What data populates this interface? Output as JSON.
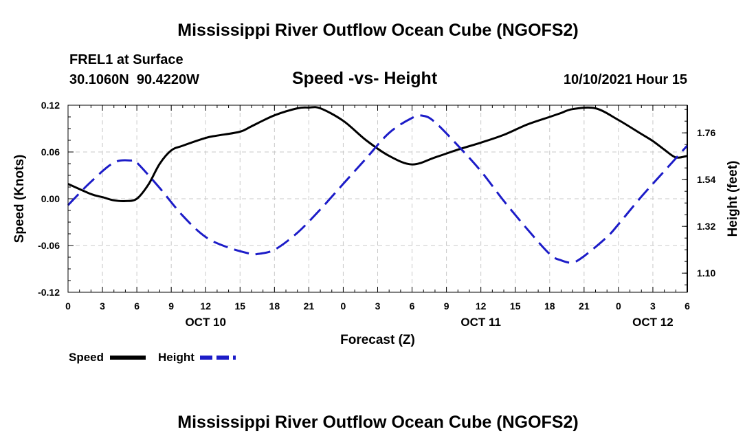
{
  "header": {
    "title": "Mississippi River Outflow Ocean Cube (NGOFS2)",
    "station": "FREL1 at Surface",
    "coords": "30.1060N  90.4220W",
    "subtitle": "Speed -vs- Height",
    "datetime": "10/10/2021 Hour 15"
  },
  "footer": {
    "title": "Mississippi River Outflow Ocean Cube (NGOFS2)"
  },
  "legend": {
    "speed_label": "Speed",
    "height_label": "Height"
  },
  "colors": {
    "speed": "#000000",
    "height": "#1c1cc8",
    "grid": "#c8c8c8"
  },
  "chart_data": {
    "type": "line",
    "title": "Speed -vs- Height",
    "xlabel": "Forecast (Z)",
    "ylabel": "Speed (Knots)",
    "y2label": "Height (feet)",
    "x_range": [
      0,
      54
    ],
    "x_ticks": [
      0,
      3,
      6,
      9,
      12,
      15,
      18,
      21,
      24,
      27,
      30,
      33,
      36,
      39,
      42,
      45,
      48,
      51,
      54
    ],
    "x_tick_labels": [
      "0",
      "3",
      "6",
      "9",
      "12",
      "15",
      "18",
      "21",
      "0",
      "3",
      "6",
      "9",
      "12",
      "15",
      "18",
      "21",
      "0",
      "3",
      "6"
    ],
    "day_labels": [
      {
        "x": 12,
        "label": "OCT 10"
      },
      {
        "x": 36,
        "label": "OCT 11"
      },
      {
        "x": 51,
        "label": "OCT 12"
      }
    ],
    "ylim": [
      -0.12,
      0.12
    ],
    "y_ticks": [
      -0.12,
      -0.06,
      0.0,
      0.06,
      0.12
    ],
    "y_tick_labels": [
      "-0.12",
      "-0.06",
      "0.00",
      "0.06",
      "0.12"
    ],
    "y2lim": [
      1.01,
      1.89
    ],
    "y2_ticks": [
      1.1,
      1.32,
      1.54,
      1.76
    ],
    "y2_tick_labels": [
      "1.10",
      "1.32",
      "1.54",
      "1.76"
    ],
    "series": [
      {
        "name": "Speed",
        "axis": "left",
        "style": "solid",
        "x": [
          0,
          2,
          3,
          4,
          5,
          6,
          7,
          8,
          9,
          10,
          12,
          13,
          15,
          16,
          18,
          20,
          21,
          22,
          24,
          26,
          28,
          30,
          32,
          34,
          36,
          38,
          40,
          42,
          43,
          44,
          46,
          48,
          50,
          51,
          52,
          53,
          54
        ],
        "values": [
          0.019,
          0.006,
          0.002,
          -0.002,
          -0.003,
          0.0,
          0.018,
          0.045,
          0.062,
          0.068,
          0.078,
          0.081,
          0.086,
          0.093,
          0.107,
          0.116,
          0.117,
          0.116,
          0.1,
          0.075,
          0.055,
          0.044,
          0.053,
          0.063,
          0.072,
          0.082,
          0.095,
          0.105,
          0.11,
          0.115,
          0.116,
          0.101,
          0.083,
          0.074,
          0.063,
          0.053,
          0.055
        ]
      },
      {
        "name": "Height",
        "axis": "right",
        "style": "dashed",
        "x": [
          0,
          2,
          4,
          5.5,
          6,
          8,
          10,
          12,
          14,
          16,
          16.5,
          18,
          20,
          22,
          24,
          26,
          28,
          30,
          31,
          32,
          34,
          36,
          38,
          40,
          42,
          43,
          44,
          45,
          47,
          48,
          50,
          52,
          54
        ],
        "values": [
          1.42,
          1.53,
          1.62,
          1.63,
          1.62,
          1.5,
          1.37,
          1.27,
          1.22,
          1.19,
          1.19,
          1.21,
          1.29,
          1.4,
          1.52,
          1.64,
          1.76,
          1.83,
          1.84,
          1.81,
          1.7,
          1.58,
          1.44,
          1.31,
          1.19,
          1.16,
          1.15,
          1.18,
          1.27,
          1.33,
          1.46,
          1.58,
          1.7
        ]
      }
    ]
  }
}
